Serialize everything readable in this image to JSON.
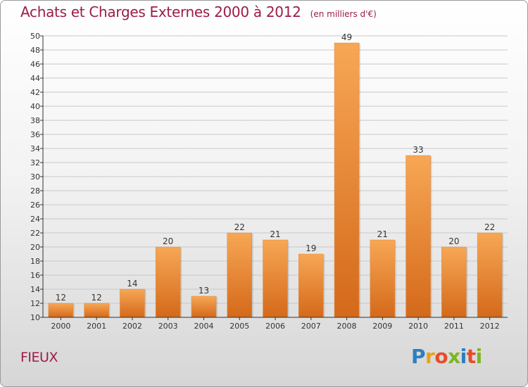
{
  "header": {
    "title": "Achats et Charges Externes 2000 à 2012",
    "unit": "(en milliers d'€)"
  },
  "footer": {
    "commune": "FIEUX",
    "brand": "Proxiti"
  },
  "colors": {
    "title": "#9b1d45",
    "bar_light": "#f7a755",
    "bar_dark": "#d4691a",
    "grid": "#c8c8c8",
    "axis": "#333333"
  },
  "chart_data": {
    "type": "bar",
    "title": "Achats et Charges Externes 2000 à 2012",
    "xlabel": "",
    "ylabel": "",
    "categories": [
      "2000",
      "2001",
      "2002",
      "2003",
      "2004",
      "2005",
      "2006",
      "2007",
      "2008",
      "2009",
      "2010",
      "2011",
      "2012"
    ],
    "values": [
      12,
      12,
      14,
      20,
      13,
      22,
      21,
      19,
      49,
      21,
      33,
      20,
      22
    ],
    "ylim": [
      10,
      50
    ],
    "yticks": [
      10,
      12,
      14,
      16,
      18,
      20,
      22,
      24,
      26,
      28,
      30,
      32,
      34,
      36,
      38,
      40,
      42,
      44,
      46,
      48,
      50
    ],
    "grid": true,
    "data_labels": true
  }
}
